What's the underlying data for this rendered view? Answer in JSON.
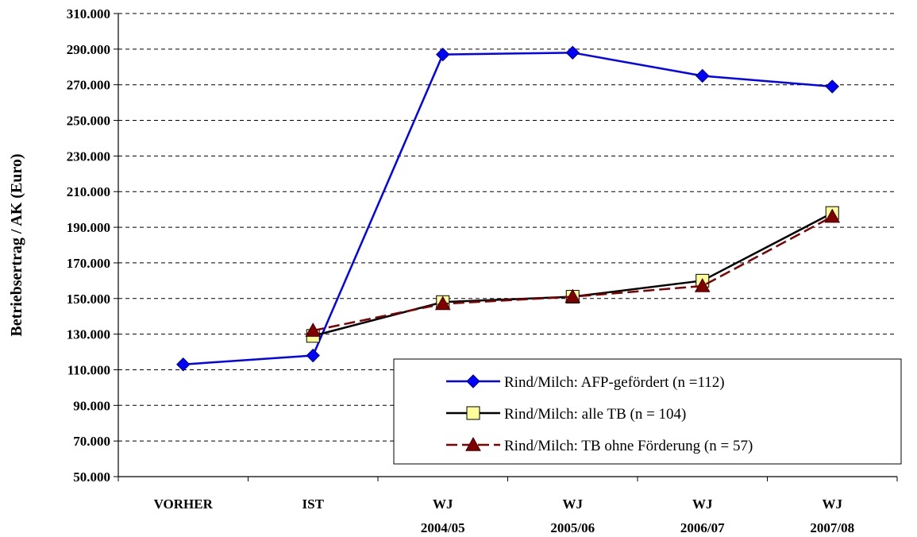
{
  "chart_data": {
    "type": "line",
    "title": "",
    "xlabel": "",
    "ylabel": "Betriebsertrag / AK (Euro)",
    "ylim": [
      50000,
      310000
    ],
    "yticks": [
      50000,
      70000,
      90000,
      110000,
      130000,
      150000,
      170000,
      190000,
      210000,
      230000,
      250000,
      270000,
      290000,
      310000
    ],
    "ytick_labels": [
      "50.000",
      "70.000",
      "90.000",
      "110.000",
      "130.000",
      "150.000",
      "170.000",
      "190.000",
      "210.000",
      "230.000",
      "250.000",
      "270.000",
      "290.000",
      "310.000"
    ],
    "categories": [
      [
        "VORHER"
      ],
      [
        "IST"
      ],
      [
        "WJ",
        "2004/05"
      ],
      [
        "WJ",
        "2005/06"
      ],
      [
        "WJ",
        "2006/07"
      ],
      [
        "WJ",
        "2007/08"
      ]
    ],
    "grid": "horizontal dashed",
    "legend_position": "bottom-right",
    "series": [
      {
        "name": "Rind/Milch: AFP-gefördert (n =112)",
        "color": "#0000ff",
        "marker": "diamond",
        "line_style": "solid",
        "values": [
          113000,
          118000,
          287000,
          288000,
          275000,
          269000
        ]
      },
      {
        "name": "Rind/Milch: alle TB (n = 104)",
        "color": "#000000",
        "marker": "square",
        "marker_fill": "#ffff99",
        "line_style": "solid",
        "values": [
          null,
          129000,
          148000,
          151000,
          160000,
          198000
        ]
      },
      {
        "name": "Rind/Milch: TB ohne Förderung (n = 57)",
        "color": "#800000",
        "marker": "triangle",
        "line_style": "dashed",
        "values": [
          null,
          132000,
          147000,
          151000,
          157000,
          196000
        ]
      }
    ]
  }
}
